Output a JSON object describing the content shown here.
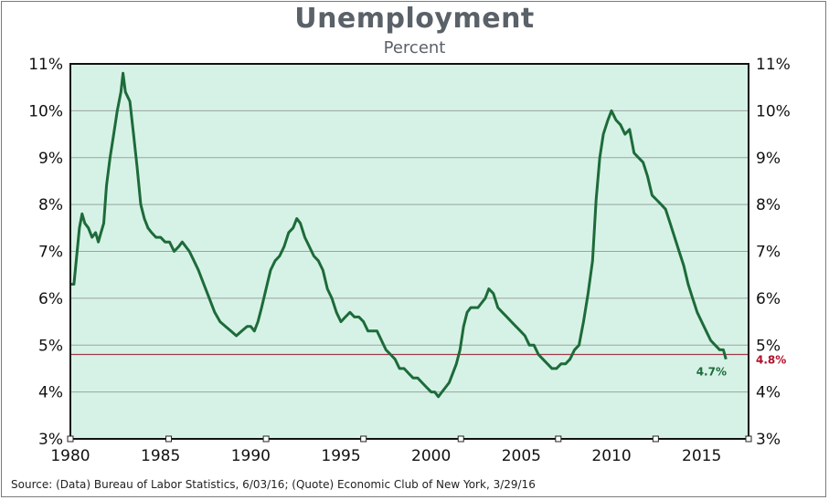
{
  "colors": {
    "plot_background": "#d6f2e6",
    "series_line": "#1d6b3a",
    "reference_line": "#a23a4a",
    "reference_label": "#b0102a",
    "last_value_label": "#1d6b3a",
    "grid": "#9aa3a0",
    "title": "#5a6168"
  },
  "chart_data": {
    "type": "line",
    "title": "Unemployment",
    "subtitle": "Percent",
    "xlabel": "",
    "ylabel": "",
    "xlim": [
      1980,
      2017.6
    ],
    "ylim": [
      3,
      11
    ],
    "y_ticks": [
      3,
      4,
      5,
      6,
      7,
      8,
      9,
      10,
      11
    ],
    "y_tick_labels": [
      "3%",
      "4%",
      "5%",
      "6%",
      "7%",
      "8%",
      "9%",
      "10%",
      "11%"
    ],
    "x_ticks": [
      1980,
      1985,
      1990,
      1995,
      2000,
      2005,
      2010,
      2015
    ],
    "x_tick_labels": [
      "1980",
      "1985",
      "1990",
      "1995",
      "2000",
      "2005",
      "2010",
      "2015"
    ],
    "y_axis_both_sides": true,
    "grid": "horizontal",
    "reference_line": {
      "value": 4.8,
      "label": "4.8%"
    },
    "last_value_label": "4.7%",
    "series": [
      {
        "x": [
          1980.0,
          1980.2,
          1980.35,
          1980.5,
          1980.65,
          1980.8,
          1981.0,
          1981.2,
          1981.4,
          1981.55,
          1981.7,
          1981.85,
          1982.0,
          1982.2,
          1982.4,
          1982.6,
          1982.8,
          1982.92,
          1983.05,
          1983.3,
          1983.5,
          1983.7,
          1983.9,
          1984.1,
          1984.3,
          1984.5,
          1984.75,
          1985.0,
          1985.25,
          1985.5,
          1985.75,
          1986.0,
          1986.2,
          1986.4,
          1986.6,
          1986.85,
          1987.1,
          1987.4,
          1987.7,
          1988.0,
          1988.3,
          1988.6,
          1988.9,
          1989.2,
          1989.5,
          1989.8,
          1990.0,
          1990.2,
          1990.4,
          1990.6,
          1990.85,
          1991.1,
          1991.35,
          1991.6,
          1991.85,
          1992.1,
          1992.35,
          1992.55,
          1992.75,
          1993.0,
          1993.25,
          1993.5,
          1993.75,
          1994.0,
          1994.25,
          1994.5,
          1994.75,
          1995.0,
          1995.25,
          1995.5,
          1995.75,
          1996.0,
          1996.25,
          1996.5,
          1996.75,
          1997.0,
          1997.25,
          1997.5,
          1997.75,
          1998.0,
          1998.25,
          1998.5,
          1998.75,
          1999.0,
          1999.25,
          1999.5,
          1999.75,
          2000.0,
          2000.2,
          2000.4,
          2000.6,
          2000.8,
          2001.0,
          2001.2,
          2001.4,
          2001.6,
          2001.8,
          2002.0,
          2002.2,
          2002.4,
          2002.6,
          2002.8,
          2003.0,
          2003.2,
          2003.45,
          2003.7,
          2003.95,
          2004.2,
          2004.45,
          2004.7,
          2004.95,
          2005.2,
          2005.45,
          2005.7,
          2005.95,
          2006.2,
          2006.45,
          2006.7,
          2006.95,
          2007.2,
          2007.45,
          2007.7,
          2007.95,
          2008.2,
          2008.45,
          2008.7,
          2008.95,
          2009.15,
          2009.35,
          2009.55,
          2009.8,
          2010.0,
          2010.25,
          2010.5,
          2010.75,
          2011.0,
          2011.25,
          2011.5,
          2011.75,
          2012.0,
          2012.25,
          2012.5,
          2012.75,
          2013.0,
          2013.25,
          2013.5,
          2013.75,
          2014.0,
          2014.25,
          2014.5,
          2014.75,
          2015.0,
          2015.25,
          2015.5,
          2015.75,
          2016.0,
          2016.2,
          2016.35
        ],
        "values": [
          6.3,
          6.3,
          6.9,
          7.5,
          7.8,
          7.6,
          7.5,
          7.3,
          7.4,
          7.2,
          7.4,
          7.6,
          8.4,
          9.0,
          9.5,
          10.0,
          10.4,
          10.8,
          10.4,
          10.2,
          9.5,
          8.8,
          8.0,
          7.7,
          7.5,
          7.4,
          7.3,
          7.3,
          7.2,
          7.2,
          7.0,
          7.1,
          7.2,
          7.1,
          7.0,
          6.8,
          6.6,
          6.3,
          6.0,
          5.7,
          5.5,
          5.4,
          5.3,
          5.2,
          5.3,
          5.4,
          5.4,
          5.3,
          5.5,
          5.8,
          6.2,
          6.6,
          6.8,
          6.9,
          7.1,
          7.4,
          7.5,
          7.7,
          7.6,
          7.3,
          7.1,
          6.9,
          6.8,
          6.6,
          6.2,
          6.0,
          5.7,
          5.5,
          5.6,
          5.7,
          5.6,
          5.6,
          5.5,
          5.3,
          5.3,
          5.3,
          5.1,
          4.9,
          4.8,
          4.7,
          4.5,
          4.5,
          4.4,
          4.3,
          4.3,
          4.2,
          4.1,
          4.0,
          4.0,
          3.9,
          4.0,
          4.1,
          4.2,
          4.4,
          4.6,
          4.9,
          5.4,
          5.7,
          5.8,
          5.8,
          5.8,
          5.9,
          6.0,
          6.2,
          6.1,
          5.8,
          5.7,
          5.6,
          5.5,
          5.4,
          5.3,
          5.2,
          5.0,
          5.0,
          4.8,
          4.7,
          4.6,
          4.5,
          4.5,
          4.6,
          4.6,
          4.7,
          4.9,
          5.0,
          5.5,
          6.1,
          6.8,
          8.1,
          9.0,
          9.5,
          9.8,
          10.0,
          9.8,
          9.7,
          9.5,
          9.6,
          9.1,
          9.0,
          8.9,
          8.6,
          8.2,
          8.1,
          8.0,
          7.9,
          7.6,
          7.3,
          7.0,
          6.7,
          6.3,
          6.0,
          5.7,
          5.5,
          5.3,
          5.1,
          5.0,
          4.9,
          4.9,
          4.7
        ]
      }
    ]
  },
  "source_note": "Source:  (Data) Bureau of Labor Statistics, 6/03/16; (Quote) Economic Club of New York, 3/29/16"
}
